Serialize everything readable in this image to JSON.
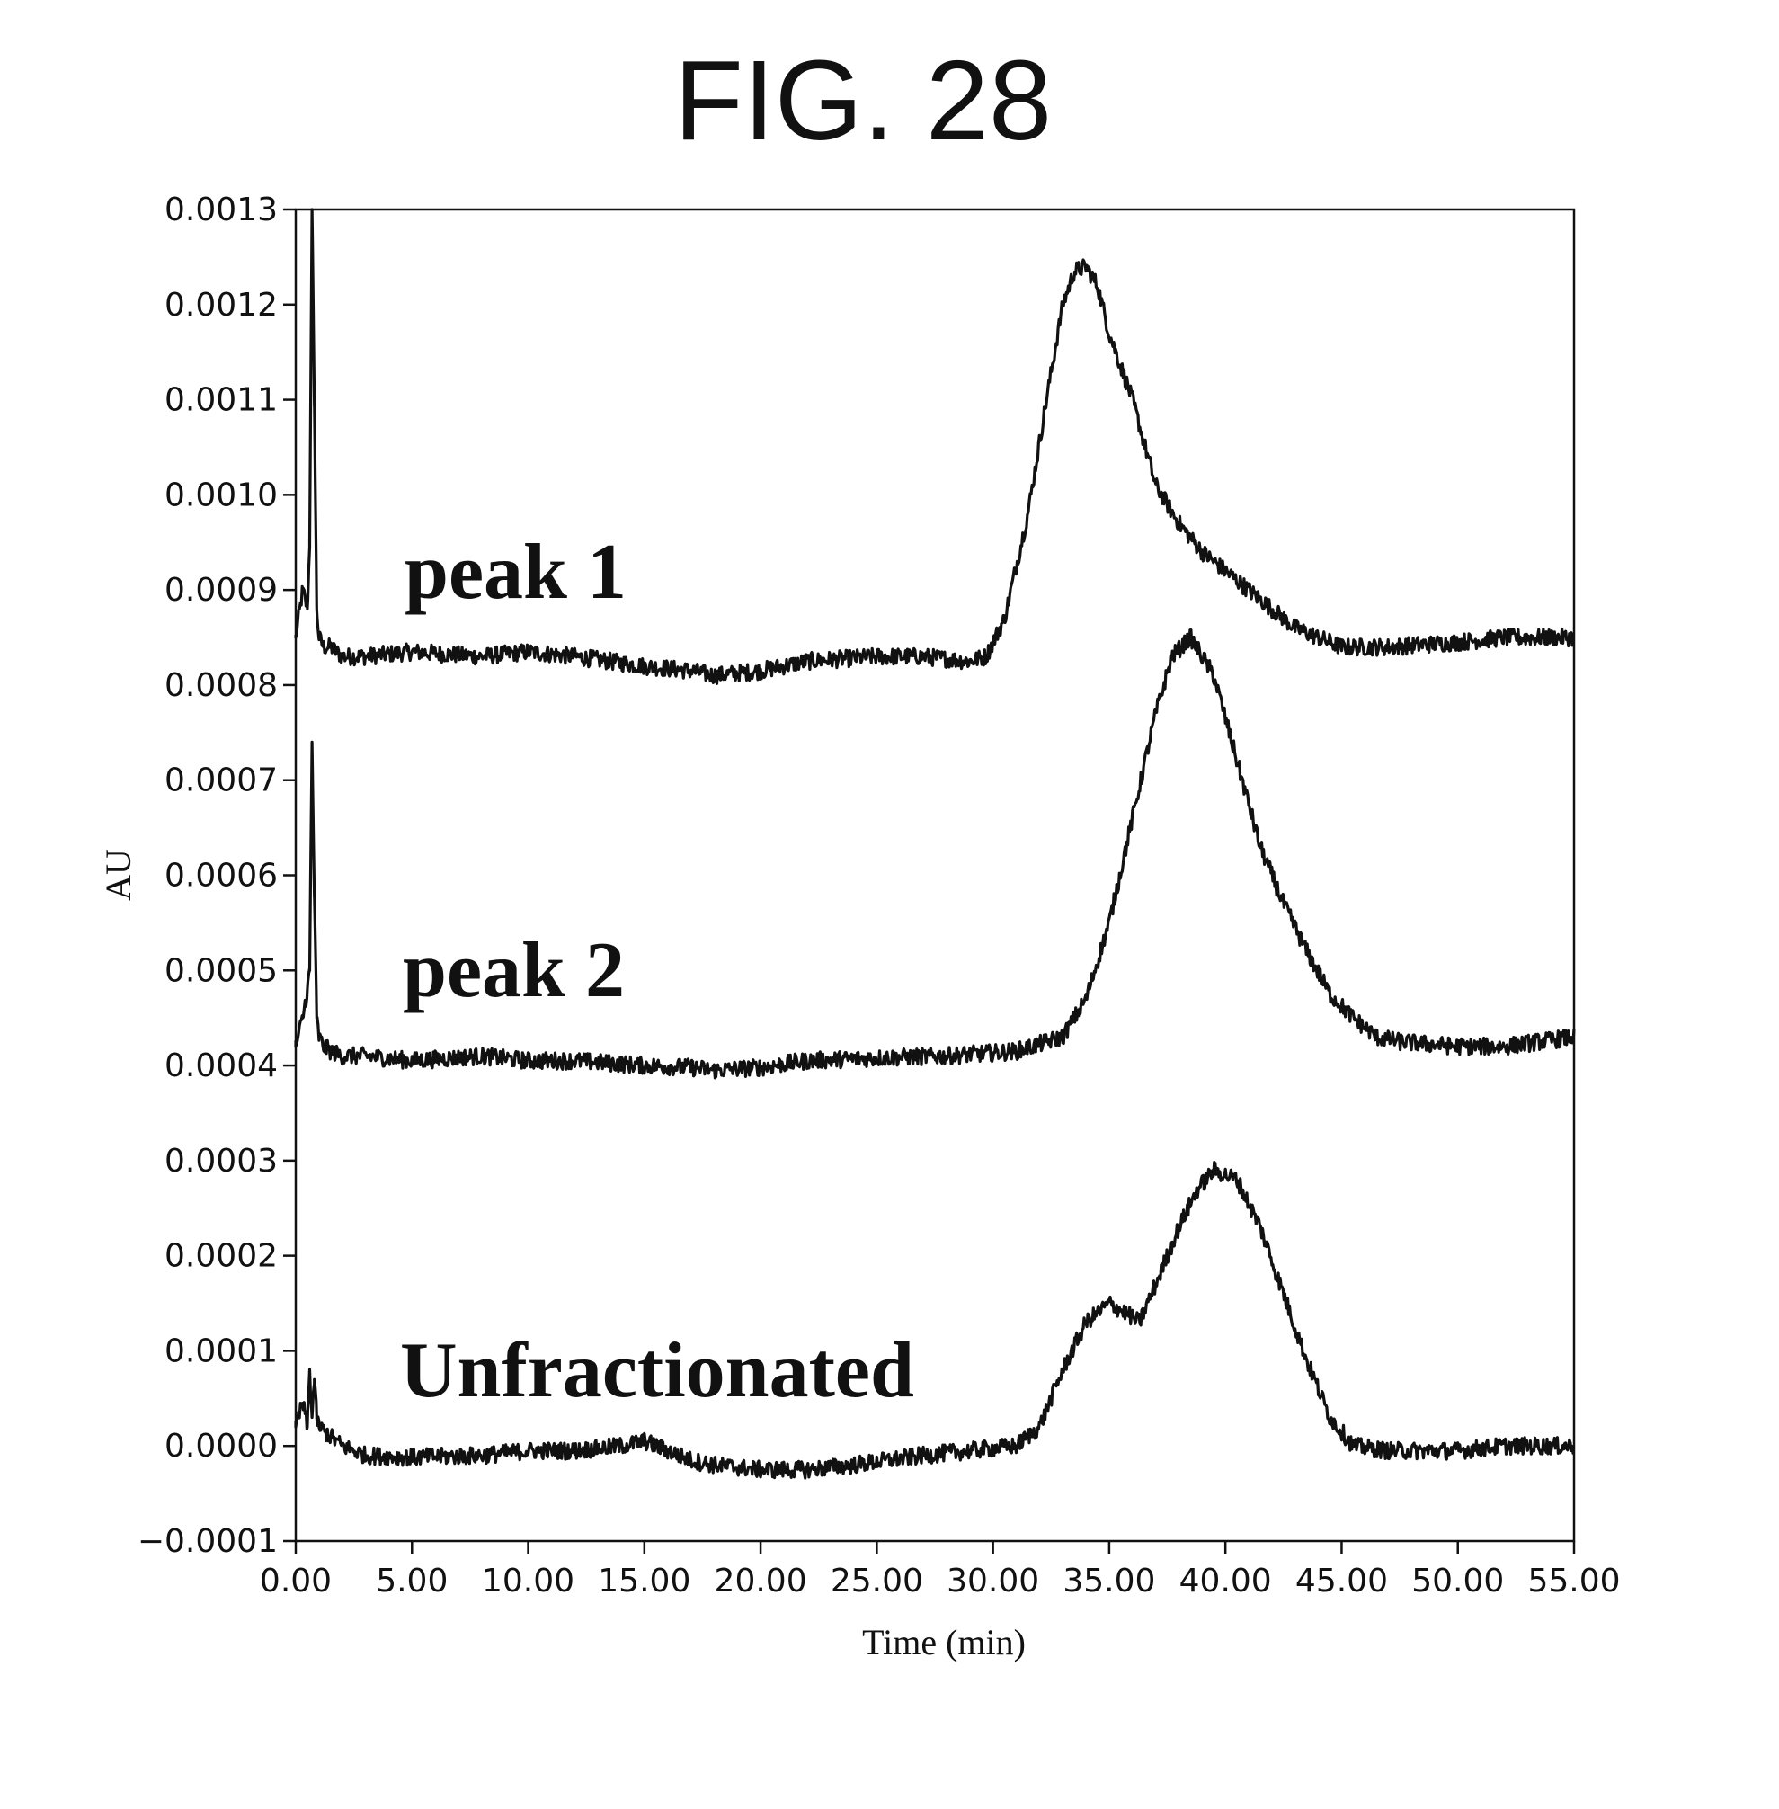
{
  "chart_data": {
    "type": "line",
    "title": "FIG. 28",
    "xlabel": "Time (min)",
    "ylabel": "AU",
    "xlim": [
      0,
      55
    ],
    "ylim": [
      -0.0001,
      0.0013
    ],
    "x_ticks": [
      "0.00",
      "5.00",
      "10.00",
      "15.00",
      "20.00",
      "25.00",
      "30.00",
      "35.00",
      "40.00",
      "45.00",
      "50.00",
      "55.00"
    ],
    "y_ticks": [
      "-0.0001",
      "0.0000",
      "0.0001",
      "0.0002",
      "0.0003",
      "0.0004",
      "0.0005",
      "0.0006",
      "0.0007",
      "0.0008",
      "0.0009",
      "0.0010",
      "0.0011",
      "0.0012",
      "0.0013"
    ],
    "grid": false,
    "line_color": "#111111",
    "series": [
      {
        "name": "peak 1",
        "x": [
          0.0,
          0.3,
          0.5,
          0.6,
          0.7,
          0.8,
          0.9,
          1.0,
          1.2,
          1.5,
          2.0,
          3.0,
          5.0,
          8.0,
          10.0,
          12.0,
          15.0,
          17.0,
          18.0,
          20.0,
          22.0,
          25.0,
          27.0,
          29.0,
          29.7,
          30.5,
          31.5,
          32.3,
          33.0,
          33.5,
          34.0,
          34.5,
          35.0,
          36.0,
          37.0,
          38.0,
          39.0,
          40.0,
          41.0,
          42.0,
          43.0,
          44.0,
          45.0,
          47.0,
          50.0,
          52.0,
          55.0
        ],
        "y": [
          0.00085,
          0.0009,
          0.00088,
          0.00095,
          0.0013,
          0.0011,
          0.00088,
          0.00085,
          0.00084,
          0.00084,
          0.00083,
          0.00083,
          0.000835,
          0.00083,
          0.000835,
          0.00083,
          0.00082,
          0.000815,
          0.00081,
          0.000815,
          0.000825,
          0.00083,
          0.00083,
          0.000825,
          0.00083,
          0.00087,
          0.00098,
          0.0011,
          0.0012,
          0.001235,
          0.00124,
          0.00122,
          0.00117,
          0.0011,
          0.00101,
          0.00097,
          0.00094,
          0.00092,
          0.0009,
          0.00088,
          0.00086,
          0.00085,
          0.00084,
          0.00084,
          0.000845,
          0.00085,
          0.00085
        ]
      },
      {
        "name": "peak 2",
        "x": [
          0.0,
          0.3,
          0.5,
          0.6,
          0.7,
          0.8,
          0.9,
          1.0,
          1.2,
          1.5,
          2.0,
          3.0,
          5.0,
          8.0,
          10.0,
          12.0,
          15.0,
          17.0,
          18.0,
          20.0,
          22.0,
          25.0,
          28.0,
          31.0,
          33.0,
          34.0,
          35.0,
          36.0,
          37.0,
          37.7,
          38.5,
          39.5,
          40.5,
          41.5,
          42.5,
          43.5,
          44.5,
          45.5,
          46.5,
          47.5,
          50.0,
          52.0,
          55.0
        ],
        "y": [
          0.00042,
          0.00045,
          0.00048,
          0.0005,
          0.00074,
          0.00058,
          0.00045,
          0.00043,
          0.00042,
          0.000415,
          0.00041,
          0.00041,
          0.000405,
          0.00041,
          0.000405,
          0.000405,
          0.0004,
          0.000398,
          0.000395,
          0.000398,
          0.000405,
          0.000408,
          0.00041,
          0.000415,
          0.00043,
          0.00047,
          0.00055,
          0.00066,
          0.00077,
          0.00083,
          0.00085,
          0.00081,
          0.00072,
          0.00063,
          0.00057,
          0.00052,
          0.000475,
          0.00045,
          0.00043,
          0.000425,
          0.00042,
          0.00042,
          0.00043
        ]
      },
      {
        "name": "Unfractionated",
        "x": [
          0.0,
          0.3,
          0.5,
          0.6,
          0.7,
          0.8,
          0.9,
          1.0,
          1.5,
          2.0,
          3.0,
          5.0,
          8.0,
          10.0,
          12.0,
          14.0,
          15.0,
          17.0,
          18.0,
          20.0,
          22.0,
          24.0,
          27.0,
          29.0,
          31.0,
          32.0,
          33.0,
          34.0,
          35.0,
          35.7,
          36.3,
          37.0,
          38.0,
          38.8,
          39.5,
          40.5,
          41.5,
          42.5,
          43.5,
          44.5,
          45.5,
          47.0,
          50.0,
          52.0,
          55.0
        ],
        "y": [
          2e-05,
          4.5e-05,
          2e-05,
          8e-05,
          3e-05,
          7e-05,
          3e-05,
          2e-05,
          1e-05,
          0.0,
          -1e-05,
          -1.2e-05,
          -1e-05,
          -5e-06,
          -5e-06,
          0.0,
          5e-06,
          -1.5e-05,
          -2e-05,
          -2.5e-05,
          -2.5e-05,
          -2e-05,
          -1e-05,
          -5e-06,
          0.0,
          2e-05,
          8e-05,
          0.00013,
          0.00015,
          0.00014,
          0.00013,
          0.00017,
          0.00023,
          0.00027,
          0.00029,
          0.00028,
          0.00023,
          0.00016,
          9e-05,
          3e-05,
          0.0,
          -5e-06,
          -5e-06,
          0.0,
          0.0
        ]
      }
    ]
  }
}
